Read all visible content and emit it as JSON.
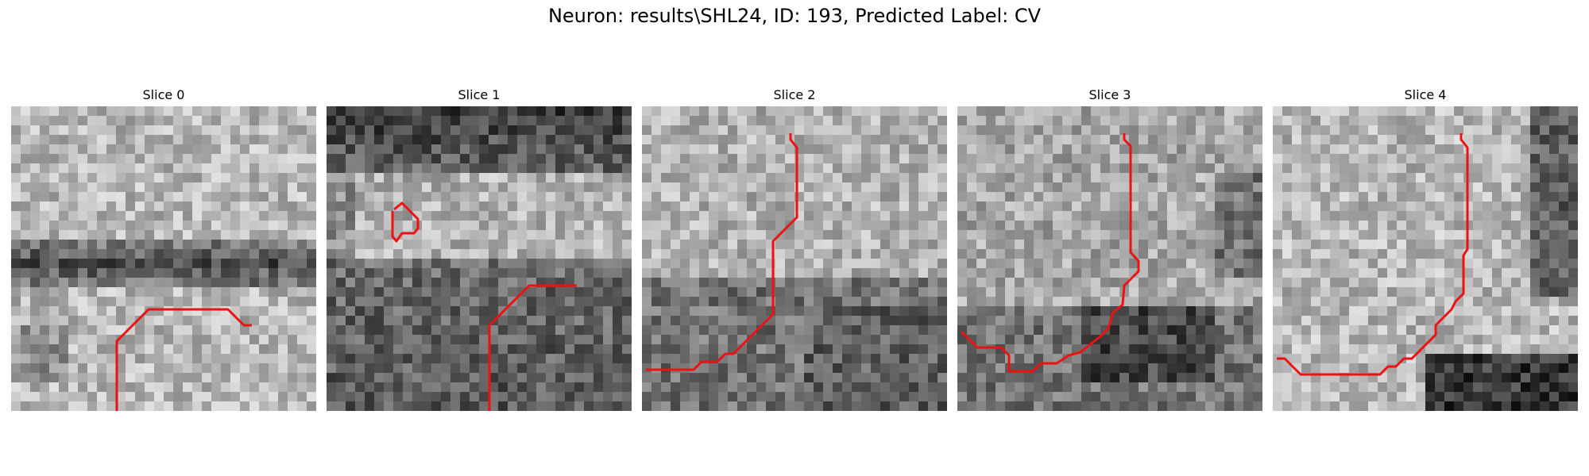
{
  "figure": {
    "title": "Neuron: results\\SHL24, ID: 193, Predicted Label: CV"
  },
  "slices": [
    {
      "title": "Slice 0"
    },
    {
      "title": "Slice 1"
    },
    {
      "title": "Slice 2"
    },
    {
      "title": "Slice 3"
    },
    {
      "title": "Slice 4"
    }
  ],
  "contour_color": "#ee1111"
}
